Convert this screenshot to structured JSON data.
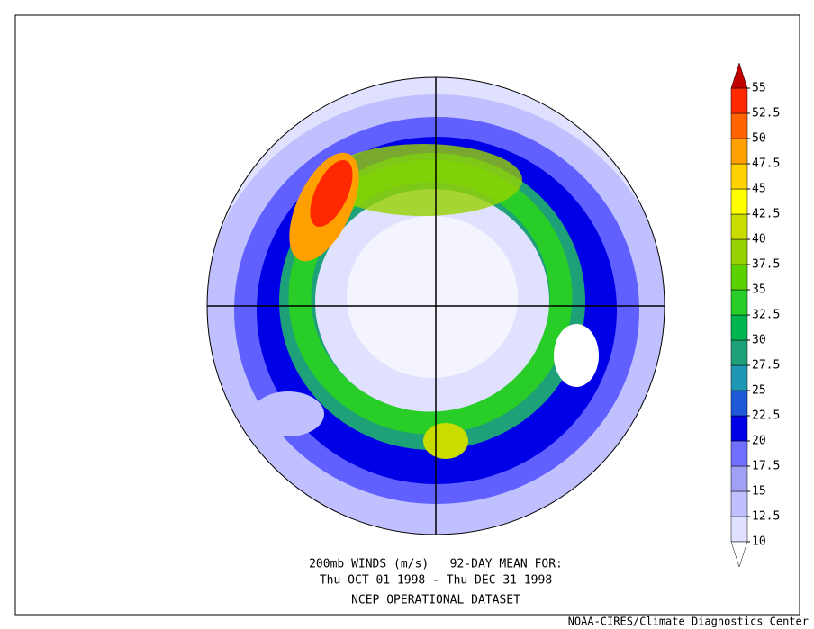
{
  "title_lines": [
    "200mb WINDS (m/s)   92-DAY MEAN FOR:",
    "Thu OCT 01 1998 - Thu DEC 31 1998",
    "NCEP OPERATIONAL DATASET"
  ],
  "credit": "NOAA-CIRES/Climate Diagnostics Center",
  "colorbar": {
    "ticks": [
      10,
      12.5,
      15,
      17.5,
      20,
      22.5,
      25,
      27.5,
      30,
      32.5,
      35,
      37.5,
      40,
      42.5,
      45,
      47.5,
      50,
      52.5,
      55
    ],
    "colors": [
      "#e0e0ff",
      "#c0c0ff",
      "#a0a0f4",
      "#7070ff",
      "#0000e6",
      "#1e5ad8",
      "#1e96b4",
      "#1ea078",
      "#00b450",
      "#28cd28",
      "#5ad200",
      "#96d200",
      "#c8dc00",
      "#ffff00",
      "#ffd200",
      "#ffa000",
      "#ff6400",
      "#ff2800"
    ],
    "under_color": "#ffffff",
    "over_color": "#c00000"
  }
}
